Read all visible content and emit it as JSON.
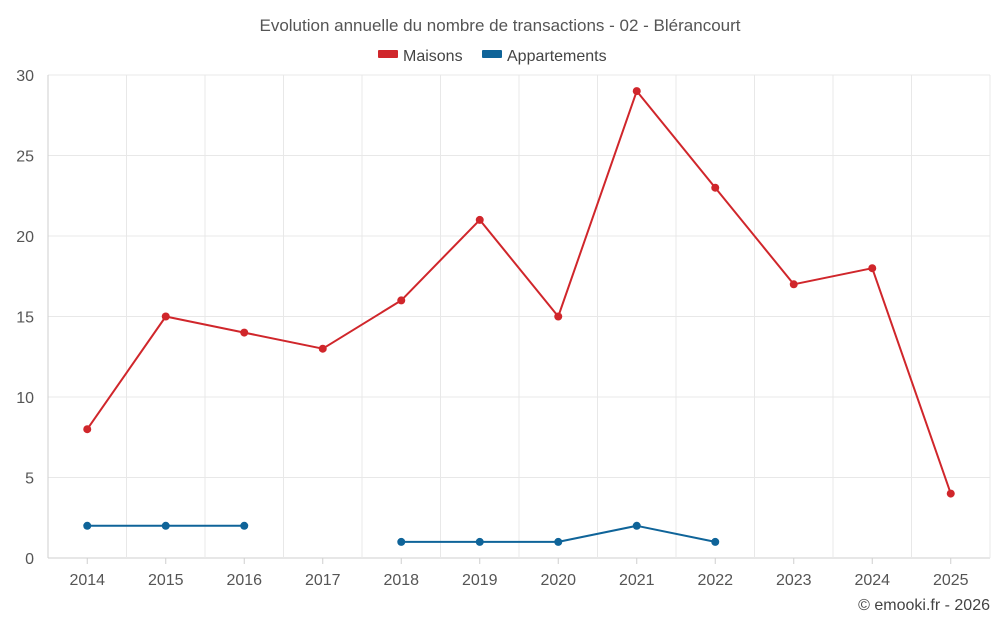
{
  "chart_data": {
    "type": "line",
    "title": "Evolution annuelle du nombre de transactions - 02 - Blérancourt",
    "categories": [
      "2014",
      "2015",
      "2016",
      "2017",
      "2018",
      "2019",
      "2020",
      "2021",
      "2022",
      "2023",
      "2024",
      "2025"
    ],
    "ylim": [
      0,
      30
    ],
    "yticks": [
      0,
      5,
      10,
      15,
      20,
      25,
      30
    ],
    "xlabel": "",
    "ylabel": "",
    "legend_position": "top-center",
    "series": [
      {
        "name": "Maisons",
        "color": "#d0262b",
        "values": [
          8,
          15,
          14,
          13,
          16,
          21,
          15,
          29,
          23,
          17,
          18,
          4
        ]
      },
      {
        "name": "Appartements",
        "color": "#0f6499",
        "values": [
          2,
          2,
          2,
          null,
          1,
          1,
          1,
          2,
          1,
          null,
          null,
          null
        ]
      }
    ]
  },
  "footer": "© emooki.fr - 2026"
}
